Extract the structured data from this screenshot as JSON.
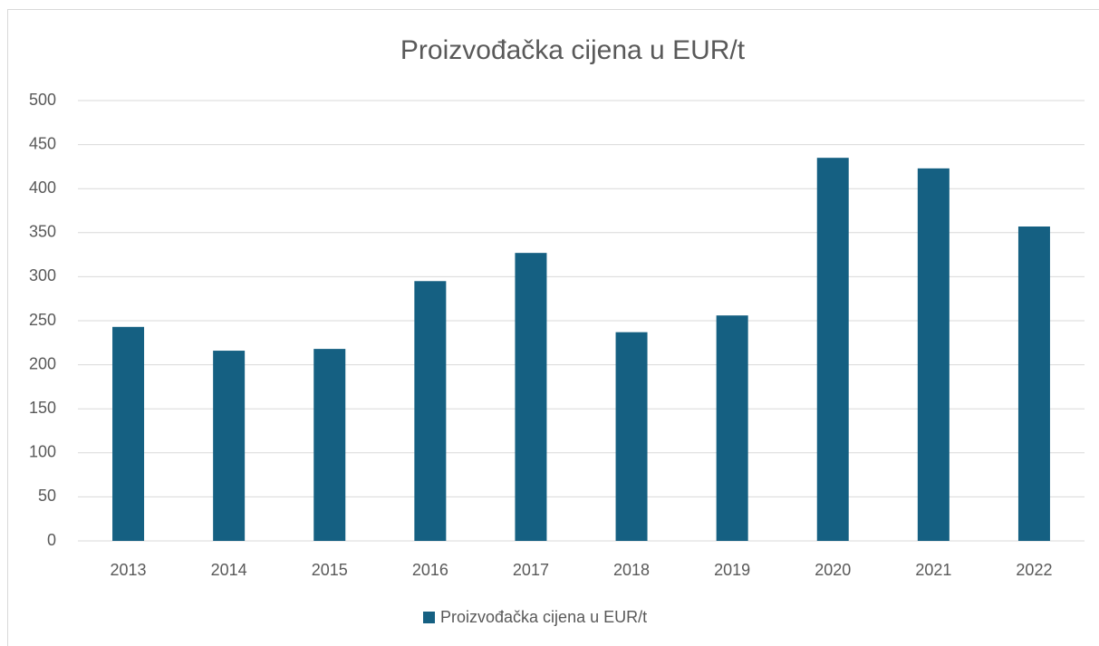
{
  "chart_data": {
    "type": "bar",
    "title": "Proizvođačka cijena u EUR/t",
    "categories": [
      "2013",
      "2014",
      "2015",
      "2016",
      "2017",
      "2018",
      "2019",
      "2020",
      "2021",
      "2022"
    ],
    "series": [
      {
        "name": "Proizvođačka cijena u EUR/t",
        "color": "#156082",
        "values": [
          243,
          216,
          218,
          295,
          327,
          237,
          256,
          435,
          423,
          357
        ]
      }
    ],
    "ylim": [
      0,
      500
    ],
    "yticks": [
      0,
      50,
      100,
      150,
      200,
      250,
      300,
      350,
      400,
      450,
      500
    ],
    "grid": true,
    "legend": "bottom"
  }
}
